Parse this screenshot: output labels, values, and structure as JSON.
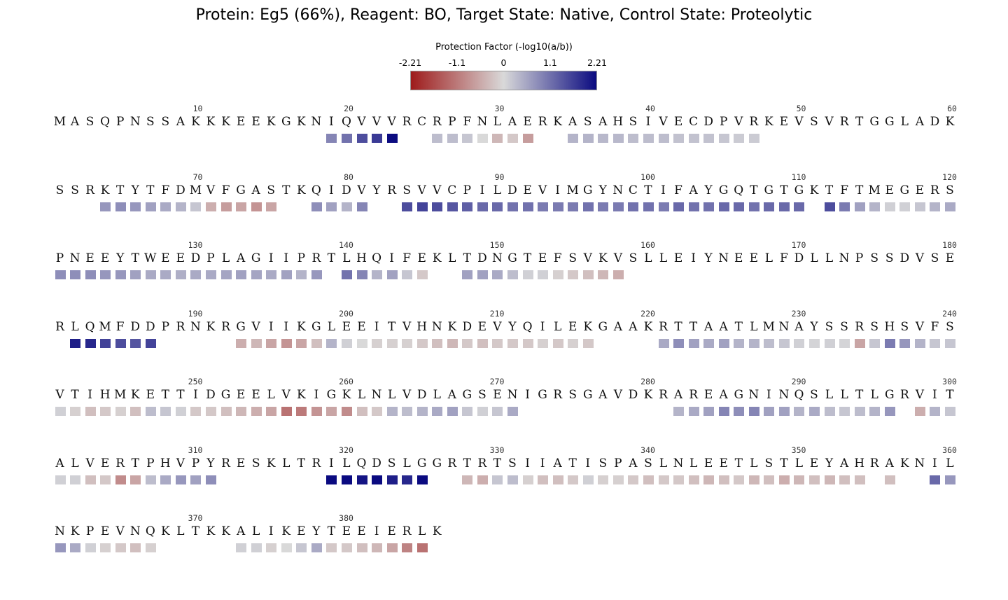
{
  "title": "Protein: Eg5 (66%),  Reagent: BO, Target State: Native, Control State: Proteolytic",
  "colorbar": {
    "label": "Protection Factor (-log10(a/b))",
    "ticks": [
      {
        "value": -2.21,
        "label": "-2.21"
      },
      {
        "value": -1.1,
        "label": "-1.1"
      },
      {
        "value": 0,
        "label": "0"
      },
      {
        "value": 1.1,
        "label": "1.1"
      },
      {
        "value": 2.21,
        "label": "2.21"
      }
    ],
    "min": -2.21,
    "max": 2.21,
    "colors": {
      "min": "#9e1b1b",
      "mid": "#d9d9d9",
      "max": "#0a0a80"
    }
  },
  "chart_data": {
    "type": "heatmap",
    "title": "Protein: Eg5 (66%),  Reagent: BO, Target State: Native, Control State: Proteolytic",
    "colorbar_label": "Protection Factor (-log10(a/b))",
    "value_range": [
      -2.21,
      2.21
    ],
    "residues_per_row": 60,
    "tick_every": 10,
    "sequence": "MASQPNSSAKKKEEKGKNIQVVVRCRPFNLAERKASAHSIVECDPVRKEVSVRTGGLADKSSRKTYTFDMVFGASTKQIDVYRSVVCPILDEVIMGYNCTIFAYGQTGTGKTFTMEGERSPNEEYTWEEDPLAGIIPRTLHQIFEKLTDNGTEFSVKVSLLEIYNEELFDLLNPSSDVSERLQMFDDPRNKRGVIIKGLEEITVHNKDEVYQILEKGAAKRTTAATLMNAYSSRSHSVFSVTIHMKETTIDGEELVKIGKLNLVDLAGSENIGRSGAVDKRAREAGNINQSLLTLGRVITALVERTPHVPYRESKLTRILQDSLGGRTRTSIIATISPASLNLEETLSTLEYAHRAKNILNKPEVNQKLTKKALIKEYTEEIERLK",
    "protection": [
      [
        19,
        0.9
      ],
      [
        20,
        1.1
      ],
      [
        21,
        1.5
      ],
      [
        22,
        1.7
      ],
      [
        23,
        2.2
      ],
      [
        26,
        0.3
      ],
      [
        27,
        0.3
      ],
      [
        28,
        0.2
      ],
      [
        29,
        0.0
      ],
      [
        30,
        -0.4
      ],
      [
        31,
        -0.2
      ],
      [
        32,
        -0.7
      ],
      [
        35,
        0.4
      ],
      [
        36,
        0.4
      ],
      [
        37,
        0.35
      ],
      [
        38,
        0.35
      ],
      [
        39,
        0.3
      ],
      [
        40,
        0.3
      ],
      [
        41,
        0.3
      ],
      [
        42,
        0.25
      ],
      [
        43,
        0.25
      ],
      [
        44,
        0.25
      ],
      [
        45,
        0.2
      ],
      [
        46,
        0.15
      ],
      [
        47,
        0.15
      ],
      [
        64,
        0.7
      ],
      [
        65,
        0.8
      ],
      [
        66,
        0.7
      ],
      [
        67,
        0.6
      ],
      [
        68,
        0.5
      ],
      [
        69,
        0.4
      ],
      [
        70,
        0.2
      ],
      [
        71,
        -0.5
      ],
      [
        72,
        -0.7
      ],
      [
        73,
        -0.6
      ],
      [
        74,
        -0.8
      ],
      [
        75,
        -0.6
      ],
      [
        78,
        0.8
      ],
      [
        79,
        0.6
      ],
      [
        80,
        0.4
      ],
      [
        81,
        0.9
      ],
      [
        84,
        1.5
      ],
      [
        85,
        1.6
      ],
      [
        86,
        1.5
      ],
      [
        87,
        1.4
      ],
      [
        88,
        1.3
      ],
      [
        89,
        1.2
      ],
      [
        90,
        1.2
      ],
      [
        91,
        1.1
      ],
      [
        92,
        1.1
      ],
      [
        93,
        1.0
      ],
      [
        94,
        1.0
      ],
      [
        95,
        1.0
      ],
      [
        96,
        1.1
      ],
      [
        97,
        1.0
      ],
      [
        98,
        1.0
      ],
      [
        99,
        1.1
      ],
      [
        100,
        1.1
      ],
      [
        101,
        1.0
      ],
      [
        102,
        1.2
      ],
      [
        103,
        1.1
      ],
      [
        104,
        1.1
      ],
      [
        105,
        1.2
      ],
      [
        106,
        1.2
      ],
      [
        107,
        1.1
      ],
      [
        108,
        1.2
      ],
      [
        109,
        1.2
      ],
      [
        110,
        1.2
      ],
      [
        112,
        1.5
      ],
      [
        113,
        1.0
      ],
      [
        114,
        0.6
      ],
      [
        115,
        0.4
      ],
      [
        116,
        0.1
      ],
      [
        117,
        0.1
      ],
      [
        118,
        0.2
      ],
      [
        119,
        0.4
      ],
      [
        120,
        0.5
      ],
      [
        121,
        0.8
      ],
      [
        122,
        0.8
      ],
      [
        123,
        0.8
      ],
      [
        124,
        0.7
      ],
      [
        125,
        0.7
      ],
      [
        126,
        0.6
      ],
      [
        127,
        0.5
      ],
      [
        128,
        0.5
      ],
      [
        129,
        0.45
      ],
      [
        130,
        0.5
      ],
      [
        131,
        0.5
      ],
      [
        132,
        0.55
      ],
      [
        133,
        0.6
      ],
      [
        134,
        0.55
      ],
      [
        135,
        0.5
      ],
      [
        136,
        0.6
      ],
      [
        137,
        0.4
      ],
      [
        138,
        0.7
      ],
      [
        140,
        1.1
      ],
      [
        141,
        0.9
      ],
      [
        142,
        0.4
      ],
      [
        143,
        0.6
      ],
      [
        144,
        0.2
      ],
      [
        145,
        -0.2
      ],
      [
        148,
        0.6
      ],
      [
        149,
        0.6
      ],
      [
        150,
        0.5
      ],
      [
        151,
        0.3
      ],
      [
        152,
        0.1
      ],
      [
        153,
        0.1
      ],
      [
        154,
        -0.1
      ],
      [
        155,
        -0.2
      ],
      [
        156,
        -0.3
      ],
      [
        157,
        -0.4
      ],
      [
        158,
        -0.5
      ],
      [
        182,
        2.0
      ],
      [
        183,
        1.9
      ],
      [
        184,
        1.6
      ],
      [
        185,
        1.5
      ],
      [
        186,
        1.4
      ],
      [
        187,
        1.6
      ],
      [
        193,
        -0.5
      ],
      [
        194,
        -0.4
      ],
      [
        195,
        -0.6
      ],
      [
        196,
        -0.8
      ],
      [
        197,
        -0.6
      ],
      [
        198,
        -0.3
      ],
      [
        199,
        0.4
      ],
      [
        200,
        0.1
      ],
      [
        201,
        0.0
      ],
      [
        202,
        -0.1
      ],
      [
        203,
        -0.1
      ],
      [
        204,
        -0.1
      ],
      [
        205,
        -0.2
      ],
      [
        206,
        -0.3
      ],
      [
        207,
        -0.4
      ],
      [
        208,
        -0.2
      ],
      [
        209,
        -0.3
      ],
      [
        210,
        -0.2
      ],
      [
        211,
        -0.2
      ],
      [
        212,
        -0.2
      ],
      [
        213,
        -0.1
      ],
      [
        214,
        -0.2
      ],
      [
        215,
        -0.1
      ],
      [
        216,
        -0.2
      ],
      [
        221,
        0.5
      ],
      [
        222,
        0.8
      ],
      [
        223,
        0.6
      ],
      [
        224,
        0.5
      ],
      [
        225,
        0.6
      ],
      [
        226,
        0.4
      ],
      [
        227,
        0.4
      ],
      [
        228,
        0.3
      ],
      [
        229,
        0.2
      ],
      [
        230,
        0.1
      ],
      [
        231,
        0.05
      ],
      [
        232,
        0.1
      ],
      [
        233,
        0.05
      ],
      [
        234,
        -0.6
      ],
      [
        235,
        0.2
      ],
      [
        236,
        1.0
      ],
      [
        237,
        0.7
      ],
      [
        238,
        0.4
      ],
      [
        239,
        0.2
      ],
      [
        240,
        0.2
      ],
      [
        241,
        0.1
      ],
      [
        242,
        -0.1
      ],
      [
        243,
        -0.3
      ],
      [
        244,
        -0.2
      ],
      [
        245,
        -0.1
      ],
      [
        246,
        -0.3
      ],
      [
        247,
        0.3
      ],
      [
        248,
        0.2
      ],
      [
        249,
        0.1
      ],
      [
        250,
        -0.2
      ],
      [
        251,
        -0.2
      ],
      [
        252,
        -0.3
      ],
      [
        253,
        -0.4
      ],
      [
        254,
        -0.5
      ],
      [
        255,
        -0.6
      ],
      [
        256,
        -1.2
      ],
      [
        257,
        -1.1
      ],
      [
        258,
        -0.8
      ],
      [
        259,
        -0.6
      ],
      [
        260,
        -0.9
      ],
      [
        261,
        -0.3
      ],
      [
        262,
        -0.2
      ],
      [
        263,
        0.4
      ],
      [
        264,
        0.3
      ],
      [
        265,
        0.4
      ],
      [
        266,
        0.5
      ],
      [
        267,
        0.6
      ],
      [
        268,
        0.2
      ],
      [
        269,
        0.1
      ],
      [
        270,
        0.2
      ],
      [
        271,
        0.5
      ],
      [
        282,
        0.4
      ],
      [
        283,
        0.5
      ],
      [
        284,
        0.6
      ],
      [
        285,
        0.9
      ],
      [
        286,
        0.8
      ],
      [
        287,
        0.9
      ],
      [
        288,
        0.6
      ],
      [
        289,
        0.6
      ],
      [
        290,
        0.4
      ],
      [
        291,
        0.5
      ],
      [
        292,
        0.3
      ],
      [
        293,
        0.2
      ],
      [
        294,
        0.3
      ],
      [
        295,
        0.4
      ],
      [
        296,
        0.7
      ],
      [
        298,
        -0.5
      ],
      [
        299,
        0.4
      ],
      [
        300,
        0.2
      ],
      [
        301,
        0.1
      ],
      [
        302,
        0.1
      ],
      [
        303,
        -0.3
      ],
      [
        304,
        -0.2
      ],
      [
        305,
        -0.9
      ],
      [
        306,
        -0.6
      ],
      [
        307,
        0.3
      ],
      [
        308,
        0.5
      ],
      [
        309,
        0.7
      ],
      [
        310,
        0.6
      ],
      [
        311,
        0.8
      ],
      [
        319,
        2.21
      ],
      [
        320,
        2.21
      ],
      [
        321,
        2.1
      ],
      [
        322,
        2.21
      ],
      [
        323,
        2.0
      ],
      [
        324,
        1.9
      ],
      [
        325,
        2.21
      ],
      [
        328,
        -0.4
      ],
      [
        329,
        -0.5
      ],
      [
        330,
        0.2
      ],
      [
        331,
        0.3
      ],
      [
        332,
        -0.1
      ],
      [
        333,
        -0.3
      ],
      [
        334,
        -0.3
      ],
      [
        335,
        -0.2
      ],
      [
        336,
        0.1
      ],
      [
        337,
        -0.1
      ],
      [
        338,
        -0.1
      ],
      [
        339,
        -0.2
      ],
      [
        340,
        -0.3
      ],
      [
        341,
        -0.2
      ],
      [
        342,
        -0.2
      ],
      [
        343,
        -0.3
      ],
      [
        344,
        -0.4
      ],
      [
        345,
        -0.3
      ],
      [
        346,
        -0.2
      ],
      [
        347,
        -0.4
      ],
      [
        348,
        -0.3
      ],
      [
        349,
        -0.5
      ],
      [
        350,
        -0.4
      ],
      [
        351,
        -0.3
      ],
      [
        352,
        -0.4
      ],
      [
        353,
        -0.3
      ],
      [
        354,
        -0.3
      ],
      [
        356,
        -0.3
      ],
      [
        359,
        1.2
      ],
      [
        360,
        0.7
      ],
      [
        361,
        0.7
      ],
      [
        362,
        0.5
      ],
      [
        363,
        0.1
      ],
      [
        364,
        -0.1
      ],
      [
        365,
        -0.2
      ],
      [
        366,
        -0.3
      ],
      [
        367,
        -0.1
      ],
      [
        373,
        0.1
      ],
      [
        374,
        0.1
      ],
      [
        375,
        -0.1
      ],
      [
        376,
        0.0
      ],
      [
        377,
        0.2
      ],
      [
        378,
        0.5
      ],
      [
        379,
        -0.2
      ],
      [
        380,
        -0.2
      ],
      [
        381,
        -0.3
      ],
      [
        382,
        -0.4
      ],
      [
        383,
        -0.6
      ],
      [
        384,
        -1.0
      ],
      [
        385,
        -1.2
      ]
    ]
  }
}
